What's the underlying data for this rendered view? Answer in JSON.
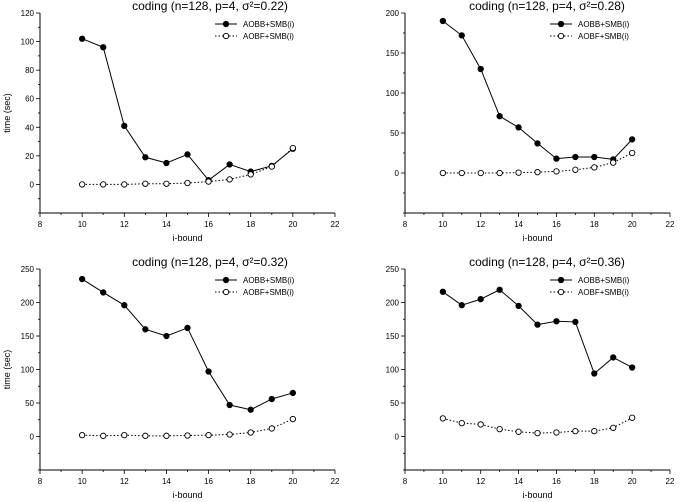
{
  "chart_data": [
    {
      "type": "line",
      "title": "coding (n=128, p=4, σ²=0.22)",
      "xlabel": "i-bound",
      "ylabel": "time (sec)",
      "xlim": [
        8,
        22
      ],
      "ylim": [
        -20,
        120
      ],
      "xticks": [
        8,
        10,
        12,
        14,
        16,
        18,
        20,
        22
      ],
      "yticks": [
        0,
        20,
        40,
        60,
        80,
        100,
        120
      ],
      "x": [
        10,
        11,
        12,
        13,
        14,
        15,
        16,
        17,
        18,
        19,
        20
      ],
      "legend_position": "top-right",
      "series": [
        {
          "name": "AOBB+SMB(i)",
          "style": "solid-filled",
          "values": [
            102,
            96,
            41,
            19,
            15,
            21,
            3,
            14,
            9,
            13,
            25
          ]
        },
        {
          "name": "AOBF+SMB(i)",
          "style": "dotted-open",
          "values": [
            0,
            0,
            0,
            0.5,
            0.5,
            1,
            2,
            3.5,
            7,
            12.5,
            25.5
          ]
        }
      ]
    },
    {
      "type": "line",
      "title": "coding (n=128, p=4, σ²=0.28)",
      "xlabel": "i-bound",
      "ylabel": "",
      "xlim": [
        8,
        22
      ],
      "ylim": [
        -50,
        200
      ],
      "xticks": [
        8,
        10,
        12,
        14,
        16,
        18,
        20,
        22
      ],
      "yticks": [
        0,
        50,
        100,
        150,
        200
      ],
      "x": [
        10,
        11,
        12,
        13,
        14,
        15,
        16,
        17,
        18,
        19,
        20
      ],
      "legend_position": "top-right",
      "series": [
        {
          "name": "AOBB+SMB(i)",
          "style": "solid-filled",
          "values": [
            190,
            172,
            130,
            71,
            57,
            37,
            18,
            20,
            20,
            17,
            42
          ]
        },
        {
          "name": "AOBF+SMB(i)",
          "style": "dotted-open",
          "values": [
            0,
            0,
            0,
            0,
            0.5,
            1,
            2,
            4,
            7,
            13,
            25
          ]
        }
      ]
    },
    {
      "type": "line",
      "title": "coding (n=128, p=4, σ²=0.32)",
      "xlabel": "i-bound",
      "ylabel": "time (sec)",
      "xlim": [
        8,
        22
      ],
      "ylim": [
        -50,
        250
      ],
      "xticks": [
        8,
        10,
        12,
        14,
        16,
        18,
        20,
        22
      ],
      "yticks": [
        0,
        50,
        100,
        150,
        200,
        250
      ],
      "x": [
        10,
        11,
        12,
        13,
        14,
        15,
        16,
        17,
        18,
        19,
        20
      ],
      "legend_position": "top-right",
      "series": [
        {
          "name": "AOBB+SMB(i)",
          "style": "solid-filled",
          "values": [
            235,
            215,
            196,
            160,
            150,
            162,
            97,
            47,
            40,
            56,
            65
          ]
        },
        {
          "name": "AOBF+SMB(i)",
          "style": "dotted-open",
          "values": [
            2,
            1,
            2,
            1,
            1,
            1.5,
            2,
            3,
            6,
            12,
            26
          ]
        }
      ]
    },
    {
      "type": "line",
      "title": "coding (n=128, p=4, σ²=0.36)",
      "xlabel": "i-bound",
      "ylabel": "",
      "xlim": [
        8,
        22
      ],
      "ylim": [
        -50,
        250
      ],
      "xticks": [
        8,
        10,
        12,
        14,
        16,
        18,
        20,
        22
      ],
      "yticks": [
        0,
        50,
        100,
        150,
        200,
        250
      ],
      "x": [
        10,
        11,
        12,
        13,
        14,
        15,
        16,
        17,
        18,
        19,
        20
      ],
      "legend_position": "top-right",
      "series": [
        {
          "name": "AOBB+SMB(i)",
          "style": "solid-filled",
          "values": [
            216,
            196,
            205,
            219,
            195,
            167,
            172,
            171,
            94,
            118,
            103
          ]
        },
        {
          "name": "AOBF+SMB(i)",
          "style": "dotted-open",
          "values": [
            27,
            20,
            18,
            11,
            7,
            5,
            6,
            8,
            8,
            13,
            28
          ]
        }
      ]
    }
  ]
}
